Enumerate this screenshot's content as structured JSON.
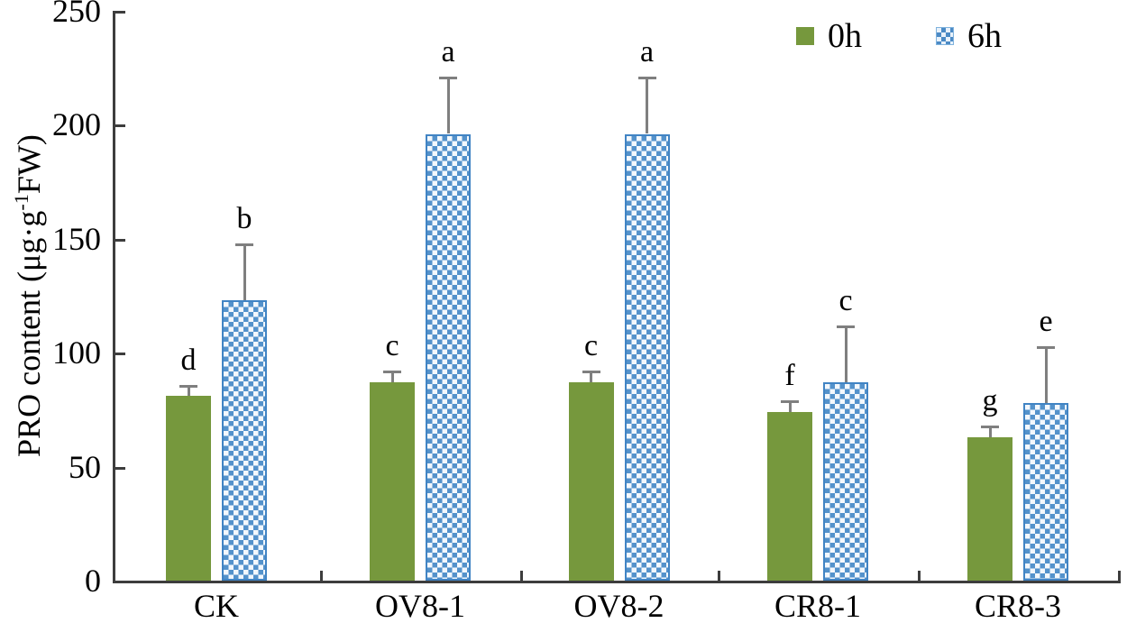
{
  "chart_data": {
    "type": "bar",
    "title": "",
    "xlabel": "",
    "ylabel": "PRO content (μg·g⁻¹FW)",
    "ylabel_parts": {
      "prefix": "PRO content (μg·g",
      "superscript": "-1",
      "suffix": "FW)"
    },
    "ylim": [
      0,
      250
    ],
    "yticks": [
      0,
      50,
      100,
      150,
      200,
      250
    ],
    "grid": false,
    "legend_position": "top-right",
    "categories": [
      "CK",
      "OV8-1",
      "OV8-2",
      "CR8-1",
      "CR8-3"
    ],
    "series": [
      {
        "name": "0h",
        "color": "#76983d",
        "pattern": "solid",
        "values": [
          81,
          87,
          87,
          74,
          63
        ],
        "errors": [
          5,
          5,
          5,
          5,
          5
        ],
        "letters": [
          "d",
          "c",
          "c",
          "f",
          "g"
        ]
      },
      {
        "name": "6h",
        "color": "#4f8bc6",
        "pattern": "checker",
        "values": [
          123,
          196,
          196,
          87,
          78
        ],
        "errors": [
          25,
          25,
          25,
          25,
          25
        ],
        "letters": [
          "b",
          "a",
          "a",
          "c",
          "e"
        ]
      }
    ],
    "error_bar_color": "#7f7f7f",
    "axis_color": "#3d3d3d"
  }
}
